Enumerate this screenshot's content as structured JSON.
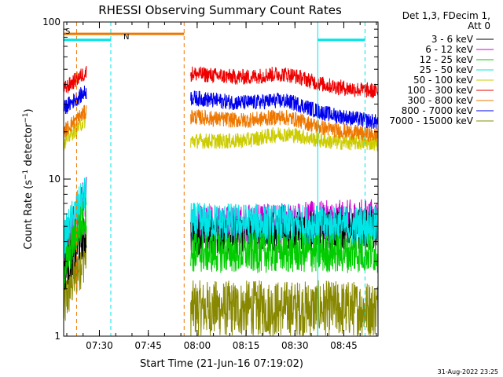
{
  "chart_data": {
    "type": "line",
    "title": "RHESSI Observing Summary Count Rates",
    "xlabel": "Start Time (21-Jun-16 07:19:02)",
    "ylabel": "Count Rate (s",
    "ylabel_sup": "−1",
    "ylabel_tail": " detector",
    "ylabel_end": ")",
    "yscale": "log",
    "ylim": [
      1,
      100
    ],
    "y_ticks": [
      "1",
      "10",
      "100"
    ],
    "x_range_minutes": [
      "07:19:02",
      "08:55:30"
    ],
    "x_ticks": [
      "07:30",
      "07:45",
      "08:00",
      "08:15",
      "08:30",
      "08:45"
    ],
    "footer": "31-Aug-2022 23:25",
    "legend_header": [
      "Det 1,3, FDecim 1,",
      "Att 0"
    ],
    "series": [
      {
        "name": "3 - 6 keV",
        "color": "#000000",
        "pre": [
          2.5,
          4.5
        ],
        "post": [
          4.4,
          4.8
        ],
        "noise": "low"
      },
      {
        "name": "6 - 12 keV",
        "color": "#cc00cc",
        "pre": [
          3,
          8
        ],
        "post": [
          5.0,
          5.6
        ],
        "noise": "low"
      },
      {
        "name": "12 - 25 keV",
        "color": "#00cc00",
        "pre": [
          2.5,
          6
        ],
        "post": [
          3.4,
          3.4
        ],
        "noise": "low"
      },
      {
        "name": "25 - 50 keV",
        "color": "#00e5e5",
        "pre": [
          4,
          8
        ],
        "post": [
          5.3,
          5.0
        ],
        "noise": "low"
      },
      {
        "name": "50 - 100 keV",
        "color": "#cccc00",
        "pre": [
          17,
          24
        ],
        "post": [
          17.5,
          17
        ],
        "noise": "mid"
      },
      {
        "name": "100 - 300 keV",
        "color": "#ee0000",
        "pre": [
          37,
          48
        ],
        "post": [
          47,
          36
        ],
        "noise": "mid"
      },
      {
        "name": "300 - 800 keV",
        "color": "#ee7700",
        "pre": [
          20,
          27
        ],
        "post": [
          25,
          19
        ],
        "noise": "mid"
      },
      {
        "name": "800 - 7000 keV",
        "color": "#0000ee",
        "pre": [
          28,
          36
        ],
        "post": [
          33,
          23
        ],
        "noise": "mid"
      },
      {
        "name": "7000 - 15000 keV",
        "color": "#888800",
        "pre": [
          1.5,
          3.5
        ],
        "post": [
          1.5,
          1.5
        ],
        "noise": "high"
      }
    ],
    "flags": [
      {
        "label": "S",
        "color": "#ee7700",
        "y_value": 84
      },
      {
        "label": "N",
        "color": "#00e5e5",
        "y_value": 77
      }
    ],
    "flag_segments": [
      {
        "flag": "S",
        "start": "07:19:02",
        "end": "07:56:00"
      },
      {
        "flag": "N",
        "start": "07:19:02",
        "end": "07:33:30"
      },
      {
        "flag": "N",
        "start": "08:37:00",
        "end": "08:51:30"
      }
    ],
    "vlines": [
      {
        "time": "07:23:00",
        "color": "#ee7700"
      },
      {
        "time": "07:33:30",
        "color": "#00e5e5"
      },
      {
        "time": "07:56:00",
        "color": "#ee7700"
      },
      {
        "time": "08:37:00",
        "color": "#00e5e5",
        "solid": true
      },
      {
        "time": "08:51:30",
        "color": "#00e5e5"
      }
    ],
    "data_gap": [
      "07:26:00",
      "07:58:00"
    ]
  }
}
